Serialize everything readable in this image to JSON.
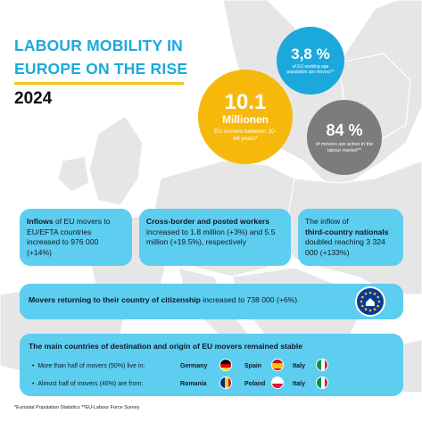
{
  "title": {
    "line1": "LABOUR MOBILITY IN",
    "line2": "EUROPE ON THE RISE",
    "year": "2024"
  },
  "circles": {
    "yellow": {
      "big": "10.1",
      "mid": "Millionen",
      "small": "EU movers between 20-64 years*",
      "color": "#f6b90b"
    },
    "blue": {
      "big": "3,8 %",
      "small": "of EU working age population are movers**",
      "color": "#1ba9dd"
    },
    "grey": {
      "big": "84 %",
      "small": "of movers are active in the labour market**",
      "color": "#7c7c7c"
    }
  },
  "boxes": {
    "inflows": {
      "bold": "Inflows",
      "text": " of EU movers to EU/EFTA countries increased to 976 000 (+14%)"
    },
    "crossborder": {
      "bold": "Cross-border and posted workers",
      "text": " increased to 1.8 million (+3%) and 5.5 million (+19.5%), respectively"
    },
    "thirdcountry": {
      "pre": "The inflow of ",
      "bold": "third-country nationals",
      "text": " doubled reaching 3 324 000 (+133%)"
    },
    "returning": {
      "bold": "Movers returning to their country of citizenship",
      "text": " increased to 738 000 (+6%)"
    }
  },
  "countries": {
    "title": "The main countries of destination and origin of EU movers remained stable",
    "rows": [
      {
        "label": "More than half of movers (50%) live in:",
        "items": [
          {
            "name": "Germany",
            "flag": "germany-flag-icon"
          },
          {
            "name": "Spain",
            "flag": "spain-flag-icon"
          },
          {
            "name": "Italy",
            "flag": "italy-flag-icon"
          }
        ]
      },
      {
        "label": "Almost half of movers (46%) are from:",
        "items": [
          {
            "name": "Romania",
            "flag": "romania-flag-icon"
          },
          {
            "name": "Poland",
            "flag": "poland-flag-icon"
          },
          {
            "name": "Italy",
            "flag": "italy-flag-icon"
          }
        ]
      }
    ]
  },
  "footnote": "*Eurostat Population Statistics   **EU-Labour Force Survey",
  "colors": {
    "accent_blue": "#1ba9dd",
    "accent_yellow": "#f5c518",
    "box_blue": "#5dcdf0",
    "map_grey": "#e4e4e4"
  }
}
